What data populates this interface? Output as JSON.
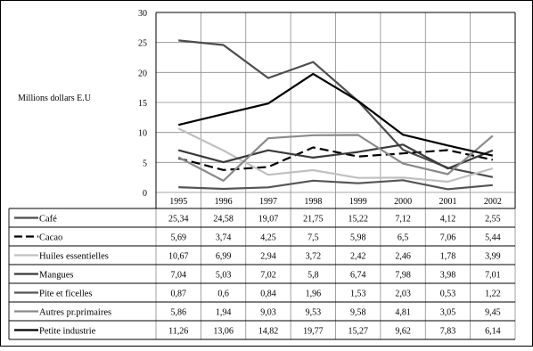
{
  "chart_data": {
    "type": "line",
    "ylabel": "Millions dollars E.U",
    "ylim": [
      0,
      30
    ],
    "yticks": [
      0,
      5,
      10,
      15,
      20,
      25,
      30
    ],
    "grid": true,
    "legend": "table-below",
    "categories": [
      "1995",
      "1996",
      "1997",
      "1998",
      "1999",
      "2000",
      "2001",
      "2002"
    ],
    "series": [
      {
        "name": "Café",
        "values": [
          25.34,
          24.58,
          19.07,
          21.75,
          15.22,
          7.12,
          4.12,
          2.55
        ],
        "values_text": [
          "25,34",
          "24,58",
          "19,07",
          "21,75",
          "15,22",
          "7,12",
          "4,12",
          "2,55"
        ],
        "color": "#4d4d4d",
        "dash": "solid"
      },
      {
        "name": "Cacao",
        "values": [
          5.69,
          3.74,
          4.25,
          7.5,
          5.98,
          6.5,
          7.06,
          5.44
        ],
        "values_text": [
          "5,69",
          "3,74",
          "4,25",
          "7,5",
          "5,98",
          "6,5",
          "7,06",
          "5,44"
        ],
        "color": "#000000",
        "dash": "dashed"
      },
      {
        "name": "Huiles essentielles",
        "values": [
          10.67,
          6.99,
          2.94,
          3.72,
          2.42,
          2.46,
          1.78,
          3.99
        ],
        "values_text": [
          "10,67",
          "6,99",
          "2,94",
          "3,72",
          "2,42",
          "2,46",
          "1,78",
          "3,99"
        ],
        "color": "#c0c0c0",
        "dash": "solid"
      },
      {
        "name": "Mangues",
        "values": [
          7.04,
          5.03,
          7.02,
          5.8,
          6.74,
          7.98,
          3.98,
          7.01
        ],
        "values_text": [
          "7,04",
          "5,03",
          "7,02",
          "5,8",
          "6,74",
          "7,98",
          "3,98",
          "7,01"
        ],
        "color": "#3a3a3a",
        "dash": "solid"
      },
      {
        "name": "Pite et ficelles",
        "values": [
          0.87,
          0.6,
          0.84,
          1.96,
          1.53,
          2.03,
          0.53,
          1.22
        ],
        "values_text": [
          "0,87",
          "0,6",
          "0,84",
          "1,96",
          "1,53",
          "2,03",
          "0,53",
          "1,22"
        ],
        "color": "#555555",
        "dash": "solid"
      },
      {
        "name": "Autres pr.primaires",
        "values": [
          5.86,
          1.94,
          9.03,
          9.53,
          9.58,
          4.81,
          3.05,
          9.45
        ],
        "values_text": [
          "5,86",
          "1,94",
          "9,03",
          "9,53",
          "9,58",
          "4,81",
          "3,05",
          "9,45"
        ],
        "color": "#8a8a8a",
        "dash": "solid"
      },
      {
        "name": "Petite industrie",
        "values": [
          11.26,
          13.06,
          14.82,
          19.77,
          15.27,
          9.62,
          7.83,
          6.14
        ],
        "values_text": [
          "11,26",
          "13,06",
          "14,82",
          "19,77",
          "15,27",
          "9,62",
          "7,83",
          "6,14"
        ],
        "color": "#000000",
        "dash": "solid"
      }
    ]
  }
}
